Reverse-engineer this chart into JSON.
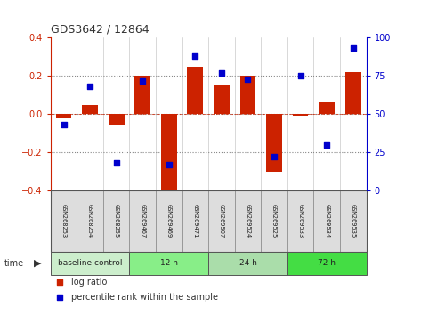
{
  "title": "GDS3642 / 12864",
  "samples": [
    "GSM268253",
    "GSM268254",
    "GSM268255",
    "GSM269467",
    "GSM269469",
    "GSM269471",
    "GSM269507",
    "GSM269524",
    "GSM269525",
    "GSM269533",
    "GSM269534",
    "GSM269535"
  ],
  "log_ratio": [
    -0.02,
    0.05,
    -0.06,
    0.2,
    -0.42,
    0.25,
    0.15,
    0.2,
    -0.3,
    -0.01,
    0.06,
    0.22
  ],
  "percentile_rank": [
    43,
    68,
    18,
    72,
    17,
    88,
    77,
    73,
    22,
    75,
    30,
    93
  ],
  "ylim": [
    -0.4,
    0.4
  ],
  "yticks_left": [
    -0.4,
    -0.2,
    0.0,
    0.2,
    0.4
  ],
  "yticks_right": [
    0,
    25,
    50,
    75,
    100
  ],
  "bar_color": "#cc2200",
  "dot_color": "#0000cc",
  "bg_color": "#ffffff",
  "dotted_color": "#333333",
  "groups": [
    {
      "label": "baseline control",
      "start": 0,
      "end": 3,
      "color": "#cceecc"
    },
    {
      "label": "12 h",
      "start": 3,
      "end": 6,
      "color": "#88ee88"
    },
    {
      "label": "24 h",
      "start": 6,
      "end": 9,
      "color": "#aaddaa"
    },
    {
      "label": "72 h",
      "start": 9,
      "end": 12,
      "color": "#44dd44"
    }
  ],
  "legend_items": [
    {
      "label": "log ratio",
      "color": "#cc2200"
    },
    {
      "label": "percentile rank within the sample",
      "color": "#0000cc"
    }
  ]
}
